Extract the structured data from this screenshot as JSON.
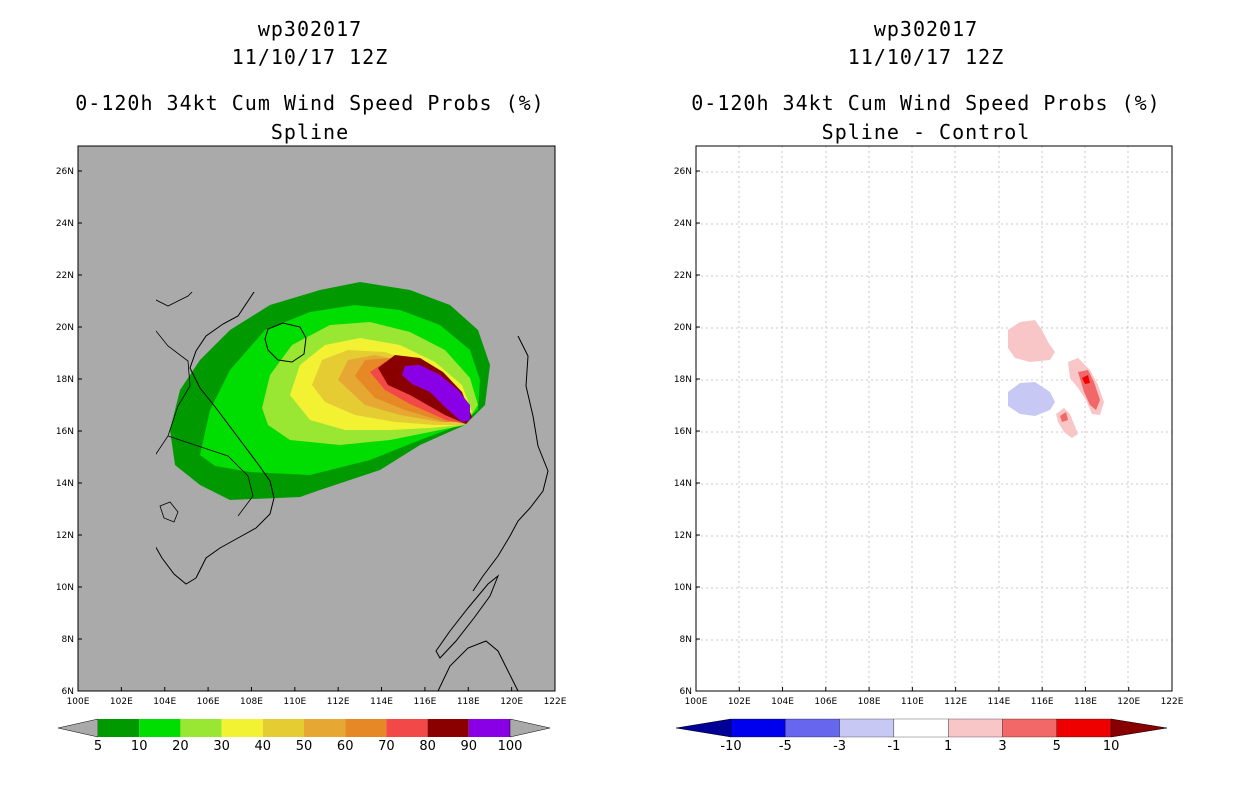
{
  "left_panel": {
    "storm_id": "wp302017",
    "datetime": "11/10/17 12Z",
    "product": "0-120h 34kt Cum Wind Speed Probs (%)",
    "subtitle": "Spline",
    "colorbar": {
      "labels": [
        "5",
        "10",
        "20",
        "30",
        "40",
        "50",
        "60",
        "70",
        "80",
        "90",
        "100"
      ],
      "colors": [
        "#009900",
        "#00dd00",
        "#99e633",
        "#f2f233",
        "#e6cc33",
        "#e6a833",
        "#e68826",
        "#f24848",
        "#8a0000",
        "#8a00e6"
      ]
    }
  },
  "right_panel": {
    "storm_id": "wp302017",
    "datetime": "11/10/17 12Z",
    "product": "0-120h 34kt Cum Wind Speed Probs (%)",
    "subtitle": "Spline - Control",
    "colorbar": {
      "labels": [
        "-10",
        "-5",
        "-3",
        "-1",
        "1",
        "3",
        "5",
        "10"
      ],
      "colors": [
        "#000099",
        "#0000ee",
        "#6666ee",
        "#c8c8f4",
        "#ffffff",
        "#f8c6c6",
        "#f26868",
        "#ee0000",
        "#880000"
      ]
    }
  },
  "map_axes": {
    "lon_labels": [
      "100E",
      "102E",
      "104E",
      "106E",
      "108E",
      "110E",
      "112E",
      "114E",
      "116E",
      "118E",
      "120E",
      "122E"
    ],
    "lat_labels": [
      "6N",
      "8N",
      "10N",
      "12N",
      "14N",
      "16N",
      "18N",
      "20N",
      "22N",
      "24N",
      "26N"
    ]
  }
}
